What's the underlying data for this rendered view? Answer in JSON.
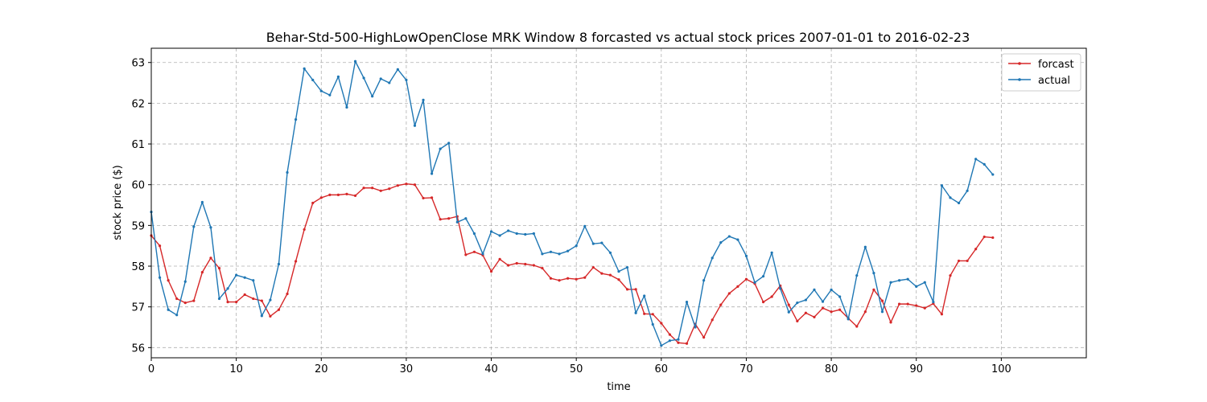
{
  "chart_data": {
    "type": "line",
    "title": "Behar-Std-500-HighLowOpenClose MRK Window 8 forcasted vs actual stock prices 2007-01-01 to 2016-02-23",
    "xlabel": "time",
    "ylabel": "stock price ($)",
    "xlim": [
      0,
      110
    ],
    "ylim": [
      55.75,
      63.35
    ],
    "xticks": [
      0,
      10,
      20,
      30,
      40,
      50,
      60,
      70,
      80,
      90,
      100
    ],
    "yticks": [
      56,
      57,
      58,
      59,
      60,
      61,
      62,
      63
    ],
    "grid": true,
    "legend_position": "top-right",
    "series": [
      {
        "name": "forcast",
        "color": "#d62728",
        "x": [
          0,
          1,
          2,
          3,
          4,
          5,
          6,
          7,
          8,
          9,
          10,
          11,
          12,
          13,
          14,
          15,
          16,
          17,
          18,
          19,
          20,
          21,
          22,
          23,
          24,
          25,
          26,
          27,
          28,
          29,
          30,
          31,
          32,
          33,
          34,
          35,
          36,
          37,
          38,
          39,
          40,
          41,
          42,
          43,
          44,
          45,
          46,
          47,
          48,
          49,
          50,
          51,
          52,
          53,
          54,
          55,
          56,
          57,
          58,
          59,
          60,
          61,
          62,
          63,
          64,
          65,
          66,
          67,
          68,
          69,
          70,
          71,
          72,
          73,
          74,
          75,
          76,
          77,
          78,
          79,
          80,
          81,
          82,
          83,
          84,
          85,
          86,
          87,
          88,
          89,
          90,
          91,
          92,
          93,
          94,
          95,
          96,
          97,
          98,
          99
        ],
        "values": [
          58.75,
          58.5,
          57.65,
          57.2,
          57.1,
          57.15,
          57.85,
          58.2,
          57.95,
          57.12,
          57.12,
          57.3,
          57.2,
          57.15,
          56.77,
          56.93,
          57.32,
          58.12,
          58.9,
          59.55,
          59.68,
          59.75,
          59.75,
          59.77,
          59.73,
          59.92,
          59.92,
          59.85,
          59.9,
          59.98,
          60.02,
          60.0,
          59.67,
          59.68,
          59.15,
          59.17,
          59.22,
          58.28,
          58.35,
          58.27,
          57.87,
          58.17,
          58.02,
          58.07,
          58.05,
          58.02,
          57.95,
          57.7,
          57.65,
          57.7,
          57.68,
          57.72,
          57.97,
          57.82,
          57.78,
          57.67,
          57.43,
          57.43,
          56.83,
          56.82,
          56.6,
          56.32,
          56.12,
          56.1,
          56.58,
          56.25,
          56.68,
          57.05,
          57.33,
          57.5,
          57.68,
          57.57,
          57.12,
          57.25,
          57.52,
          57.05,
          56.65,
          56.85,
          56.75,
          56.97,
          56.88,
          56.93,
          56.72,
          56.52,
          56.88,
          57.42,
          57.15,
          56.62,
          57.07,
          57.07,
          57.03,
          56.97,
          57.08,
          56.82,
          57.77,
          58.13,
          58.13,
          58.42,
          58.72,
          58.7
        ]
      },
      {
        "name": "actual",
        "color": "#1f77b4",
        "x": [
          0,
          1,
          2,
          3,
          4,
          5,
          6,
          7,
          8,
          9,
          10,
          11,
          12,
          13,
          14,
          15,
          16,
          17,
          18,
          19,
          20,
          21,
          22,
          23,
          24,
          25,
          26,
          27,
          28,
          29,
          30,
          31,
          32,
          33,
          34,
          35,
          36,
          37,
          38,
          39,
          40,
          41,
          42,
          43,
          44,
          45,
          46,
          47,
          48,
          49,
          50,
          51,
          52,
          53,
          54,
          55,
          56,
          57,
          58,
          59,
          60,
          61,
          62,
          63,
          64,
          65,
          66,
          67,
          68,
          69,
          70,
          71,
          72,
          73,
          74,
          75,
          76,
          77,
          78,
          79,
          80,
          81,
          82,
          83,
          84,
          85,
          86,
          87,
          88,
          89,
          90,
          91,
          92,
          93,
          94,
          95,
          96,
          97,
          98,
          99
        ],
        "values": [
          59.33,
          57.72,
          56.93,
          56.8,
          57.62,
          58.97,
          59.57,
          58.95,
          57.2,
          57.45,
          57.78,
          57.72,
          57.65,
          56.78,
          57.17,
          58.05,
          60.3,
          61.6,
          62.85,
          62.57,
          62.3,
          62.2,
          62.65,
          61.9,
          63.03,
          62.62,
          62.17,
          62.6,
          62.5,
          62.83,
          62.57,
          61.45,
          62.08,
          60.27,
          60.88,
          61.02,
          59.08,
          59.17,
          58.8,
          58.3,
          58.85,
          58.75,
          58.87,
          58.8,
          58.78,
          58.8,
          58.3,
          58.35,
          58.3,
          58.37,
          58.5,
          58.98,
          58.55,
          58.57,
          58.33,
          57.87,
          57.97,
          56.85,
          57.27,
          56.57,
          56.05,
          56.17,
          56.2,
          57.12,
          56.5,
          57.65,
          58.2,
          58.58,
          58.73,
          58.65,
          58.25,
          57.6,
          57.75,
          58.33,
          57.45,
          56.87,
          57.1,
          57.17,
          57.42,
          57.13,
          57.42,
          57.25,
          56.7,
          57.77,
          58.47,
          57.83,
          56.88,
          57.6,
          57.65,
          57.68,
          57.5,
          57.6,
          57.12,
          59.98,
          59.68,
          59.55,
          59.85,
          60.63,
          60.5,
          60.25
        ]
      }
    ]
  }
}
